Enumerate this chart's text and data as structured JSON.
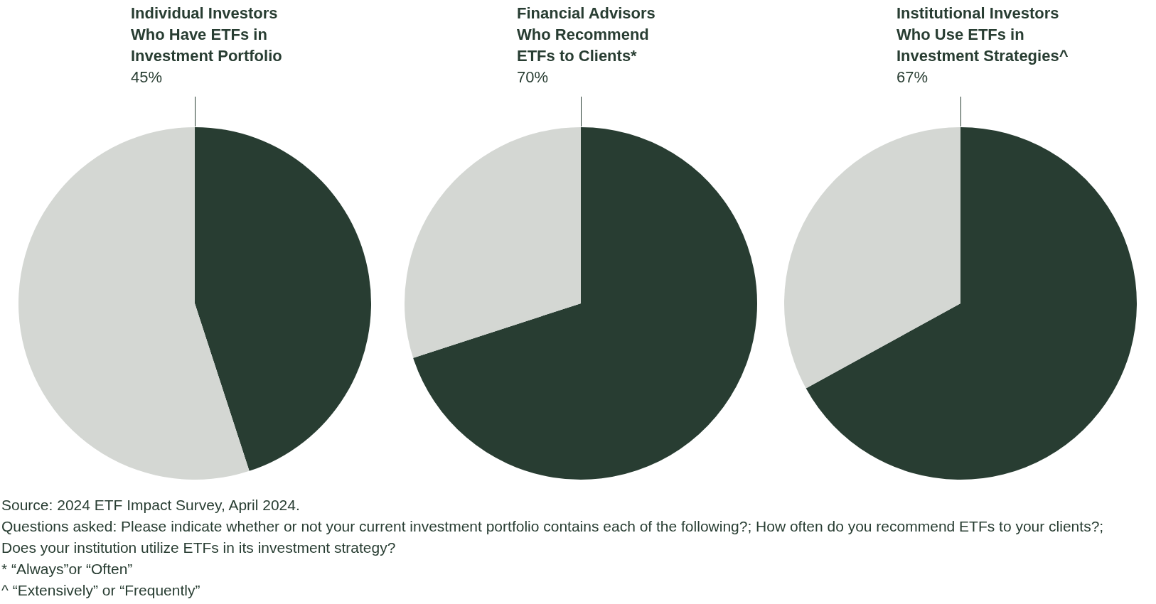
{
  "chart_data": [
    {
      "type": "pie",
      "title": "Individual Investors\nWho Have ETFs in\nInvestment Portfolio",
      "categories": [
        null,
        null
      ],
      "values": [
        45,
        55
      ],
      "colors": [
        "#283d32",
        "#d4d7d3"
      ],
      "subtitle": "45%",
      "legend": false,
      "annotations": [
        "Source: 2024 ETF Impact Survey, April 2024.",
        "Questions asked: Please indicate whether or not your current investment portfolio contains each of the following?; How often do you recommend ETFs to your clients?; Does your institution utilize ETFs in its investment strategy?",
        "*  “Always”or “Often”",
        "^ “Extensively” or “Frequently”"
      ]
    },
    {
      "type": "pie",
      "title": "Financial Advisors\nWho Recommend\nETFs to Clients*",
      "categories": [
        null,
        null
      ],
      "values": [
        70,
        30
      ],
      "colors": [
        "#283d32",
        "#d4d7d3"
      ],
      "subtitle": "70%",
      "legend": false
    },
    {
      "type": "pie",
      "title": "Institutional Investors\nWho Use ETFs in\nInvestment Strategies^",
      "categories": [
        null,
        null
      ],
      "values": [
        67,
        33
      ],
      "colors": [
        "#283d32",
        "#d4d7d3"
      ],
      "subtitle": "67%",
      "legend": false
    }
  ]
}
